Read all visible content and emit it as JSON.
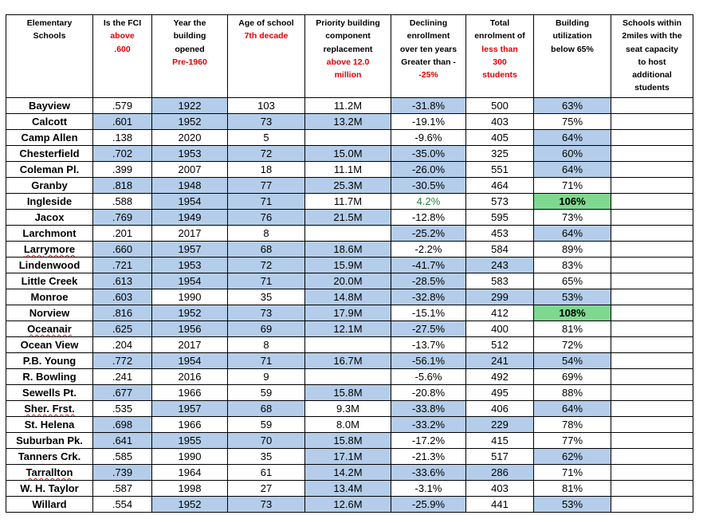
{
  "headers": [
    {
      "lines": [
        {
          "text": "Elementary",
          "red": false
        },
        {
          "text": "Schools",
          "red": false
        }
      ]
    },
    {
      "lines": [
        {
          "text": "Is the FCI",
          "red": false
        },
        {
          "text": "above",
          "red": true
        },
        {
          "text": ".600",
          "red": true
        }
      ]
    },
    {
      "lines": [
        {
          "text": "Year the",
          "red": false
        },
        {
          "text": "building",
          "red": false
        },
        {
          "text": "opened",
          "red": false
        },
        {
          "text": "Pre-1960",
          "red": true
        }
      ]
    },
    {
      "lines": [
        {
          "text": "Age of school",
          "red": false
        },
        {
          "text": "7th decade",
          "red": true
        }
      ]
    },
    {
      "lines": [
        {
          "text": "Priority building",
          "red": false
        },
        {
          "text": "component",
          "red": false
        },
        {
          "text": "replacement",
          "red": false
        },
        {
          "text": "above 12.0",
          "red": true
        },
        {
          "text": "million",
          "red": true
        }
      ]
    },
    {
      "lines": [
        {
          "text": "Declining",
          "red": false
        },
        {
          "text": "enrollment",
          "red": false
        },
        {
          "text": "over ten years",
          "red": false
        },
        {
          "text": "Greater than -",
          "red": false
        },
        {
          "text": "-25%",
          "red": true
        }
      ]
    },
    {
      "lines": [
        {
          "text": "Total",
          "red": false
        },
        {
          "text": "enrolment of",
          "red": false
        },
        {
          "text": "less than",
          "red": true
        },
        {
          "text": "300",
          "red": true
        },
        {
          "text": "students",
          "red": true
        }
      ]
    },
    {
      "lines": [
        {
          "text": "Building",
          "red": false
        },
        {
          "text": "utilization",
          "red": false
        },
        {
          "text": "below 65%",
          "red": false
        }
      ]
    },
    {
      "lines": [
        {
          "text": "Schools within",
          "red": false
        },
        {
          "text": "2miles with the",
          "red": false
        },
        {
          "text": "seat capacity",
          "red": false
        },
        {
          "text": "to host",
          "red": false
        },
        {
          "text": "additional",
          "red": false
        },
        {
          "text": "students",
          "red": false
        }
      ]
    }
  ],
  "rows": [
    {
      "school": "Bayview",
      "fci": ".579",
      "year": "1922",
      "age": "103",
      "priority": "11.2M",
      "decline": "-31.8%",
      "enrollment": "500",
      "utilization": "63%",
      "nearby": ""
    },
    {
      "school": "Calcott",
      "fci": ".601",
      "year": "1952",
      "age": "73",
      "priority": "13.2M",
      "decline": "-19.1%",
      "enrollment": "403",
      "utilization": "75%",
      "nearby": ""
    },
    {
      "school": "Camp Allen",
      "fci": ".138",
      "year": "2020",
      "age": "5",
      "priority": "",
      "decline": "-9.6%",
      "enrollment": "405",
      "utilization": "64%",
      "nearby": ""
    },
    {
      "school": "Chesterfield",
      "fci": ".702",
      "year": "1953",
      "age": "72",
      "priority": "15.0M",
      "decline": "-35.0%",
      "enrollment": "325",
      "utilization": "60%",
      "nearby": ""
    },
    {
      "school": "Coleman Pl.",
      "fci": ".399",
      "year": "2007",
      "age": "18",
      "priority": "11.1M",
      "decline": "-26.0%",
      "enrollment": "551",
      "utilization": "64%",
      "nearby": ""
    },
    {
      "school": "Granby",
      "fci": ".818",
      "year": "1948",
      "age": "77",
      "priority": "25.3M",
      "decline": "-30.5%",
      "enrollment": "464",
      "utilization": "71%",
      "nearby": ""
    },
    {
      "school": "Ingleside",
      "fci": ".588",
      "year": "1954",
      "age": "71",
      "priority": "11.7M",
      "decline": "4.2%",
      "enrollment": "573",
      "utilization": "106%",
      "nearby": ""
    },
    {
      "school": "Jacox",
      "fci": ".769",
      "year": "1949",
      "age": "76",
      "priority": "21.5M",
      "decline": "-12.8%",
      "enrollment": "595",
      "utilization": "73%",
      "nearby": ""
    },
    {
      "school": "Larchmont",
      "fci": ".201",
      "year": "2017",
      "age": "8",
      "priority": "",
      "decline": "-25.2%",
      "enrollment": "453",
      "utilization": "64%",
      "nearby": ""
    },
    {
      "school": "Larrymore",
      "fci": ".660",
      "year": "1957",
      "age": "68",
      "priority": "18.6M",
      "decline": "-2.2%",
      "enrollment": "584",
      "utilization": "89%",
      "nearby": ""
    },
    {
      "school": "Lindenwood",
      "fci": ".721",
      "year": "1953",
      "age": "72",
      "priority": "15.9M",
      "decline": "-41.7%",
      "enrollment": "243",
      "utilization": "83%",
      "nearby": ""
    },
    {
      "school": "Little Creek",
      "fci": ".613",
      "year": "1954",
      "age": "71",
      "priority": "20.0M",
      "decline": "-28.5%",
      "enrollment": "583",
      "utilization": "65%",
      "nearby": ""
    },
    {
      "school": "Monroe",
      "fci": ".603",
      "year": "1990",
      "age": "35",
      "priority": "14.8M",
      "decline": "-32.8%",
      "enrollment": "299",
      "utilization": "53%",
      "nearby": ""
    },
    {
      "school": "Norview",
      "fci": ".816",
      "year": "1952",
      "age": "73",
      "priority": "17.9M",
      "decline": "-15.1%",
      "enrollment": "412",
      "utilization": "108%",
      "nearby": ""
    },
    {
      "school": "Oceanair",
      "fci": ".625",
      "year": "1956",
      "age": "69",
      "priority": "12.1M",
      "decline": "-27.5%",
      "enrollment": "400",
      "utilization": "81%",
      "nearby": ""
    },
    {
      "school": "Ocean View",
      "fci": ".204",
      "year": "2017",
      "age": "8",
      "priority": "",
      "decline": "-13.7%",
      "enrollment": "512",
      "utilization": "72%",
      "nearby": ""
    },
    {
      "school": "P.B. Young",
      "fci": ".772",
      "year": "1954",
      "age": "71",
      "priority": "16.7M",
      "decline": "-56.1%",
      "enrollment": "241",
      "utilization": "54%",
      "nearby": ""
    },
    {
      "school": "R. Bowling",
      "fci": ".241",
      "year": "2016",
      "age": "9",
      "priority": "",
      "decline": "-5.6%",
      "enrollment": "492",
      "utilization": "69%",
      "nearby": ""
    },
    {
      "school": "Sewells Pt.",
      "fci": ".677",
      "year": "1966",
      "age": "59",
      "priority": "15.8M",
      "decline": "-20.8%",
      "enrollment": "495",
      "utilization": "88%",
      "nearby": ""
    },
    {
      "school": "Sher. Frst.",
      "fci": ".535",
      "year": "1957",
      "age": "68",
      "priority": "9.3M",
      "decline": "-33.8%",
      "enrollment": "406",
      "utilization": "64%",
      "nearby": ""
    },
    {
      "school": "St. Helena",
      "fci": ".698",
      "year": "1966",
      "age": "59",
      "priority": "8.0M",
      "decline": "-33.2%",
      "enrollment": "229",
      "utilization": "78%",
      "nearby": ""
    },
    {
      "school": "Suburban Pk.",
      "fci": ".641",
      "year": "1955",
      "age": "70",
      "priority": "15.8M",
      "decline": "-17.2%",
      "enrollment": "415",
      "utilization": "77%",
      "nearby": ""
    },
    {
      "school": "Tanners Crk.",
      "fci": ".585",
      "year": "1990",
      "age": "35",
      "priority": "17.1M",
      "decline": "-21.3%",
      "enrollment": "517",
      "utilization": "62%",
      "nearby": ""
    },
    {
      "school": "Tarrallton",
      "fci": ".739",
      "year": "1964",
      "age": "61",
      "priority": "14.2M",
      "decline": "-33.6%",
      "enrollment": "286",
      "utilization": "71%",
      "nearby": ""
    },
    {
      "school": "W. H. Taylor",
      "fci": ".587",
      "year": "1998",
      "age": "27",
      "priority": "13.4M",
      "decline": "-3.1%",
      "enrollment": "403",
      "utilization": "81%",
      "nearby": ""
    },
    {
      "school": "Willard",
      "fci": ".554",
      "year": "1952",
      "age": "73",
      "priority": "12.6M",
      "decline": "-25.9%",
      "enrollment": "441",
      "utilization": "53%",
      "nearby": ""
    }
  ],
  "highlights": {
    "Bayview": [
      "year",
      "decline",
      "utilization"
    ],
    "Calcott": [
      "fci",
      "year",
      "age",
      "priority"
    ],
    "Camp Allen": [
      "utilization"
    ],
    "Chesterfield": [
      "fci",
      "year",
      "age",
      "priority",
      "decline",
      "utilization"
    ],
    "Coleman Pl.": [
      "decline",
      "utilization"
    ],
    "Granby": [
      "fci",
      "year",
      "age",
      "priority",
      "decline"
    ],
    "Ingleside": [
      "year",
      "age"
    ],
    "Jacox": [
      "fci",
      "year",
      "age",
      "priority"
    ],
    "Larchmont": [
      "decline",
      "utilization"
    ],
    "Larrymore": [
      "fci",
      "year",
      "age",
      "priority"
    ],
    "Lindenwood": [
      "fci",
      "year",
      "age",
      "priority",
      "decline",
      "enrollment"
    ],
    "Little Creek": [
      "fci",
      "year",
      "age",
      "priority",
      "decline"
    ],
    "Monroe": [
      "fci",
      "priority",
      "decline",
      "enrollment",
      "utilization"
    ],
    "Norview": [
      "fci",
      "year",
      "age",
      "priority"
    ],
    "Oceanair": [
      "fci",
      "year",
      "age",
      "priority",
      "decline"
    ],
    "P.B. Young": [
      "fci",
      "year",
      "age",
      "priority",
      "decline",
      "enrollment",
      "utilization"
    ],
    "Sewells Pt.": [
      "fci",
      "priority"
    ],
    "Sher. Frst.": [
      "year",
      "age",
      "decline",
      "utilization"
    ],
    "St. Helena": [
      "fci",
      "decline",
      "enrollment"
    ],
    "Suburban Pk.": [
      "fci",
      "year",
      "age",
      "priority"
    ],
    "Tanners Crk.": [
      "priority",
      "utilization"
    ],
    "Tarrallton": [
      "fci",
      "priority",
      "decline",
      "enrollment"
    ],
    "W. H. Taylor": [
      "priority"
    ],
    "Willard": [
      "year",
      "age",
      "priority",
      "decline",
      "utilization"
    ]
  },
  "green_cells": {
    "Ingleside": [
      "utilization"
    ],
    "Norview": [
      "utilization"
    ]
  },
  "positive_change": {
    "Ingleside": [
      "decline"
    ]
  },
  "spellcheck_flagged": [
    "Larrymore",
    "Oceanair",
    "Sher. Frst.",
    "Tarrallton"
  ],
  "colors": {
    "criteria_red": "#e00000",
    "highlight_blue": "#b4cdea",
    "highlight_green": "#7fd890",
    "positive_green": "#2f8040",
    "spellcheck_red": "#d01818"
  }
}
